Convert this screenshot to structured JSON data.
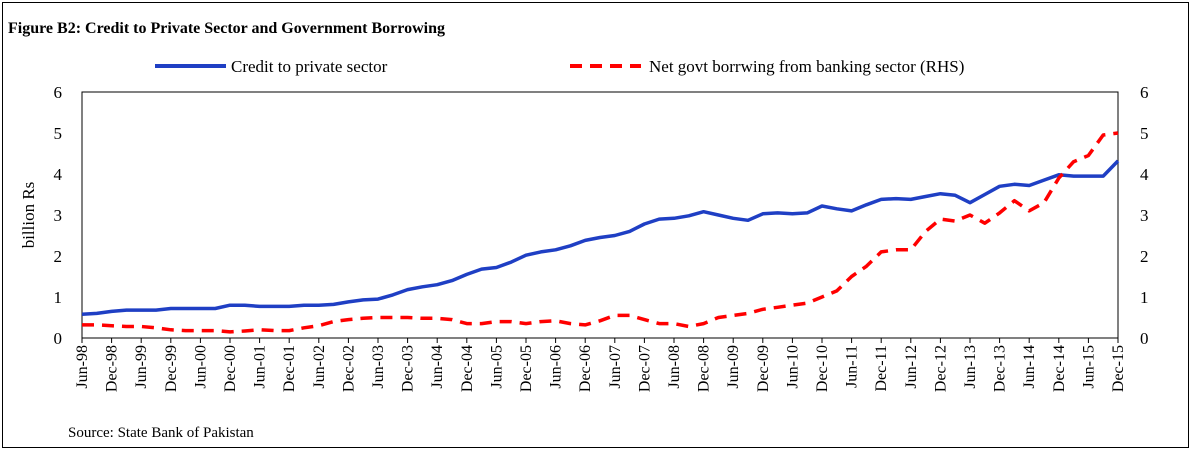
{
  "figure": {
    "title": "Figure B2: Credit to Private Sector and Government Borrowing",
    "source": "Source: State Bank of Pakistan"
  },
  "chart_data": {
    "type": "line",
    "ylabel": "billion Rs",
    "ylim": [
      0,
      6
    ],
    "y2lim": [
      0,
      6
    ],
    "yticks": [
      0,
      1,
      2,
      3,
      4,
      5,
      6
    ],
    "grid": false,
    "legend_position": "top",
    "x_tick_labels": [
      "Jun-98",
      "Dec-98",
      "Jun-99",
      "Dec-99",
      "Jun-00",
      "Dec-00",
      "Jun-01",
      "Dec-01",
      "Jun-02",
      "Dec-02",
      "Jun-03",
      "Dec-03",
      "Jun-04",
      "Dec-04",
      "Jun-05",
      "Dec-05",
      "Jun-06",
      "Dec-06",
      "Jun-07",
      "Dec-07",
      "Jun-08",
      "Dec-08",
      "Jun-09",
      "Dec-09",
      "Jun-10",
      "Dec-10",
      "Jun-11",
      "Dec-11",
      "Jun-12",
      "Dec-12",
      "Jun-13",
      "Dec-13",
      "Jun-14",
      "Dec-14",
      "Jun-15",
      "Dec-15"
    ],
    "series": [
      {
        "name": "Credit to private sector",
        "axis": "left",
        "color": "#1f3fc4",
        "style": "solid",
        "points": [
          [
            "Jun-98",
            0.58
          ],
          [
            "Sep-98",
            0.6
          ],
          [
            "Dec-98",
            0.65
          ],
          [
            "Mar-99",
            0.68
          ],
          [
            "Jun-99",
            0.68
          ],
          [
            "Sep-99",
            0.68
          ],
          [
            "Dec-99",
            0.72
          ],
          [
            "Mar-00",
            0.72
          ],
          [
            "Jun-00",
            0.72
          ],
          [
            "Sep-00",
            0.72
          ],
          [
            "Dec-00",
            0.8
          ],
          [
            "Mar-01",
            0.8
          ],
          [
            "Jun-01",
            0.77
          ],
          [
            "Sep-01",
            0.77
          ],
          [
            "Dec-01",
            0.77
          ],
          [
            "Mar-02",
            0.8
          ],
          [
            "Jun-02",
            0.8
          ],
          [
            "Sep-02",
            0.82
          ],
          [
            "Dec-02",
            0.88
          ],
          [
            "Mar-03",
            0.93
          ],
          [
            "Jun-03",
            0.95
          ],
          [
            "Sep-03",
            1.05
          ],
          [
            "Dec-03",
            1.18
          ],
          [
            "Mar-04",
            1.25
          ],
          [
            "Jun-04",
            1.3
          ],
          [
            "Sep-04",
            1.4
          ],
          [
            "Dec-04",
            1.55
          ],
          [
            "Mar-05",
            1.68
          ],
          [
            "Jun-05",
            1.72
          ],
          [
            "Sep-05",
            1.85
          ],
          [
            "Dec-05",
            2.02
          ],
          [
            "Mar-06",
            2.1
          ],
          [
            "Jun-06",
            2.15
          ],
          [
            "Sep-06",
            2.25
          ],
          [
            "Dec-06",
            2.38
          ],
          [
            "Mar-07",
            2.45
          ],
          [
            "Jun-07",
            2.5
          ],
          [
            "Sep-07",
            2.6
          ],
          [
            "Dec-07",
            2.78
          ],
          [
            "Mar-08",
            2.9
          ],
          [
            "Jun-08",
            2.92
          ],
          [
            "Sep-08",
            2.98
          ],
          [
            "Dec-08",
            3.08
          ],
          [
            "Mar-09",
            3.0
          ],
          [
            "Jun-09",
            2.92
          ],
          [
            "Sep-09",
            2.87
          ],
          [
            "Dec-09",
            3.03
          ],
          [
            "Mar-10",
            3.05
          ],
          [
            "Jun-10",
            3.03
          ],
          [
            "Sep-10",
            3.05
          ],
          [
            "Dec-10",
            3.22
          ],
          [
            "Mar-11",
            3.15
          ],
          [
            "Jun-11",
            3.1
          ],
          [
            "Sep-11",
            3.25
          ],
          [
            "Dec-11",
            3.38
          ],
          [
            "Mar-12",
            3.4
          ],
          [
            "Jun-12",
            3.38
          ],
          [
            "Sep-12",
            3.45
          ],
          [
            "Dec-12",
            3.52
          ],
          [
            "Mar-13",
            3.48
          ],
          [
            "Jun-13",
            3.3
          ],
          [
            "Sep-13",
            3.5
          ],
          [
            "Dec-13",
            3.7
          ],
          [
            "Mar-14",
            3.75
          ],
          [
            "Jun-14",
            3.72
          ],
          [
            "Sep-14",
            3.85
          ],
          [
            "Dec-14",
            3.98
          ],
          [
            "Mar-15",
            3.95
          ],
          [
            "Jun-15",
            3.95
          ],
          [
            "Sep-15",
            3.95
          ],
          [
            "Dec-15",
            4.32
          ]
        ]
      },
      {
        "name": "Net govt borrwing from banking sector (RHS)",
        "axis": "right",
        "color": "#ff0000",
        "style": "dashed",
        "points": [
          [
            "Jun-98",
            0.32
          ],
          [
            "Sep-98",
            0.32
          ],
          [
            "Dec-98",
            0.3
          ],
          [
            "Mar-99",
            0.28
          ],
          [
            "Jun-99",
            0.28
          ],
          [
            "Sep-99",
            0.25
          ],
          [
            "Dec-99",
            0.2
          ],
          [
            "Mar-00",
            0.18
          ],
          [
            "Jun-00",
            0.18
          ],
          [
            "Sep-00",
            0.18
          ],
          [
            "Dec-00",
            0.15
          ],
          [
            "Mar-01",
            0.17
          ],
          [
            "Jun-01",
            0.2
          ],
          [
            "Sep-01",
            0.18
          ],
          [
            "Dec-01",
            0.18
          ],
          [
            "Mar-02",
            0.25
          ],
          [
            "Jun-02",
            0.3
          ],
          [
            "Sep-02",
            0.4
          ],
          [
            "Dec-02",
            0.45
          ],
          [
            "Mar-03",
            0.48
          ],
          [
            "Jun-03",
            0.5
          ],
          [
            "Sep-03",
            0.5
          ],
          [
            "Dec-03",
            0.5
          ],
          [
            "Mar-04",
            0.48
          ],
          [
            "Jun-04",
            0.48
          ],
          [
            "Sep-04",
            0.45
          ],
          [
            "Dec-04",
            0.35
          ],
          [
            "Mar-05",
            0.35
          ],
          [
            "Jun-05",
            0.4
          ],
          [
            "Sep-05",
            0.4
          ],
          [
            "Dec-05",
            0.35
          ],
          [
            "Mar-06",
            0.4
          ],
          [
            "Jun-06",
            0.42
          ],
          [
            "Sep-06",
            0.35
          ],
          [
            "Dec-06",
            0.32
          ],
          [
            "Mar-07",
            0.42
          ],
          [
            "Jun-07",
            0.55
          ],
          [
            "Sep-07",
            0.55
          ],
          [
            "Dec-07",
            0.45
          ],
          [
            "Mar-08",
            0.35
          ],
          [
            "Jun-08",
            0.35
          ],
          [
            "Sep-08",
            0.28
          ],
          [
            "Dec-08",
            0.35
          ],
          [
            "Mar-09",
            0.5
          ],
          [
            "Jun-09",
            0.55
          ],
          [
            "Sep-09",
            0.6
          ],
          [
            "Dec-09",
            0.7
          ],
          [
            "Mar-10",
            0.75
          ],
          [
            "Jun-10",
            0.8
          ],
          [
            "Sep-10",
            0.85
          ],
          [
            "Dec-10",
            1.0
          ],
          [
            "Mar-11",
            1.15
          ],
          [
            "Jun-11",
            1.5
          ],
          [
            "Sep-11",
            1.75
          ],
          [
            "Dec-11",
            2.1
          ],
          [
            "Mar-12",
            2.15
          ],
          [
            "Jun-12",
            2.15
          ],
          [
            "Sep-12",
            2.6
          ],
          [
            "Dec-12",
            2.9
          ],
          [
            "Mar-13",
            2.85
          ],
          [
            "Jun-13",
            3.0
          ],
          [
            "Sep-13",
            2.8
          ],
          [
            "Dec-13",
            3.05
          ],
          [
            "Mar-14",
            3.35
          ],
          [
            "Jun-14",
            3.1
          ],
          [
            "Sep-14",
            3.3
          ],
          [
            "Dec-14",
            3.9
          ],
          [
            "Mar-15",
            4.3
          ],
          [
            "Jun-15",
            4.45
          ],
          [
            "Sep-15",
            4.95
          ],
          [
            "Dec-15",
            5.0
          ]
        ]
      }
    ]
  }
}
